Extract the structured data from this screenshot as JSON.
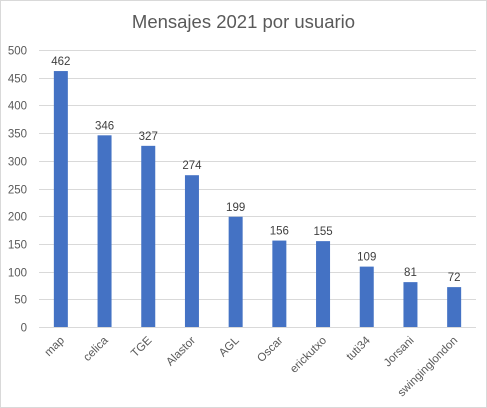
{
  "chart_data": {
    "type": "bar",
    "title": "Mensajes 2021 por usuario",
    "xlabel": "",
    "ylabel": "",
    "categories": [
      "map",
      "celica",
      "TGE",
      "Alastor",
      "AGL",
      "Oscar",
      "erickutxo",
      "tuti34",
      "Jorsani",
      "swinginglondon"
    ],
    "values": [
      462,
      346,
      327,
      274,
      199,
      156,
      155,
      109,
      81,
      72
    ],
    "ylim": [
      0,
      500
    ],
    "yticks": [
      0,
      50,
      100,
      150,
      200,
      250,
      300,
      350,
      400,
      450,
      500
    ],
    "grid": true,
    "legend": "none",
    "colors": {
      "bar": "#4472C4",
      "grid": "#d9d9d9",
      "text": "#595959"
    }
  }
}
